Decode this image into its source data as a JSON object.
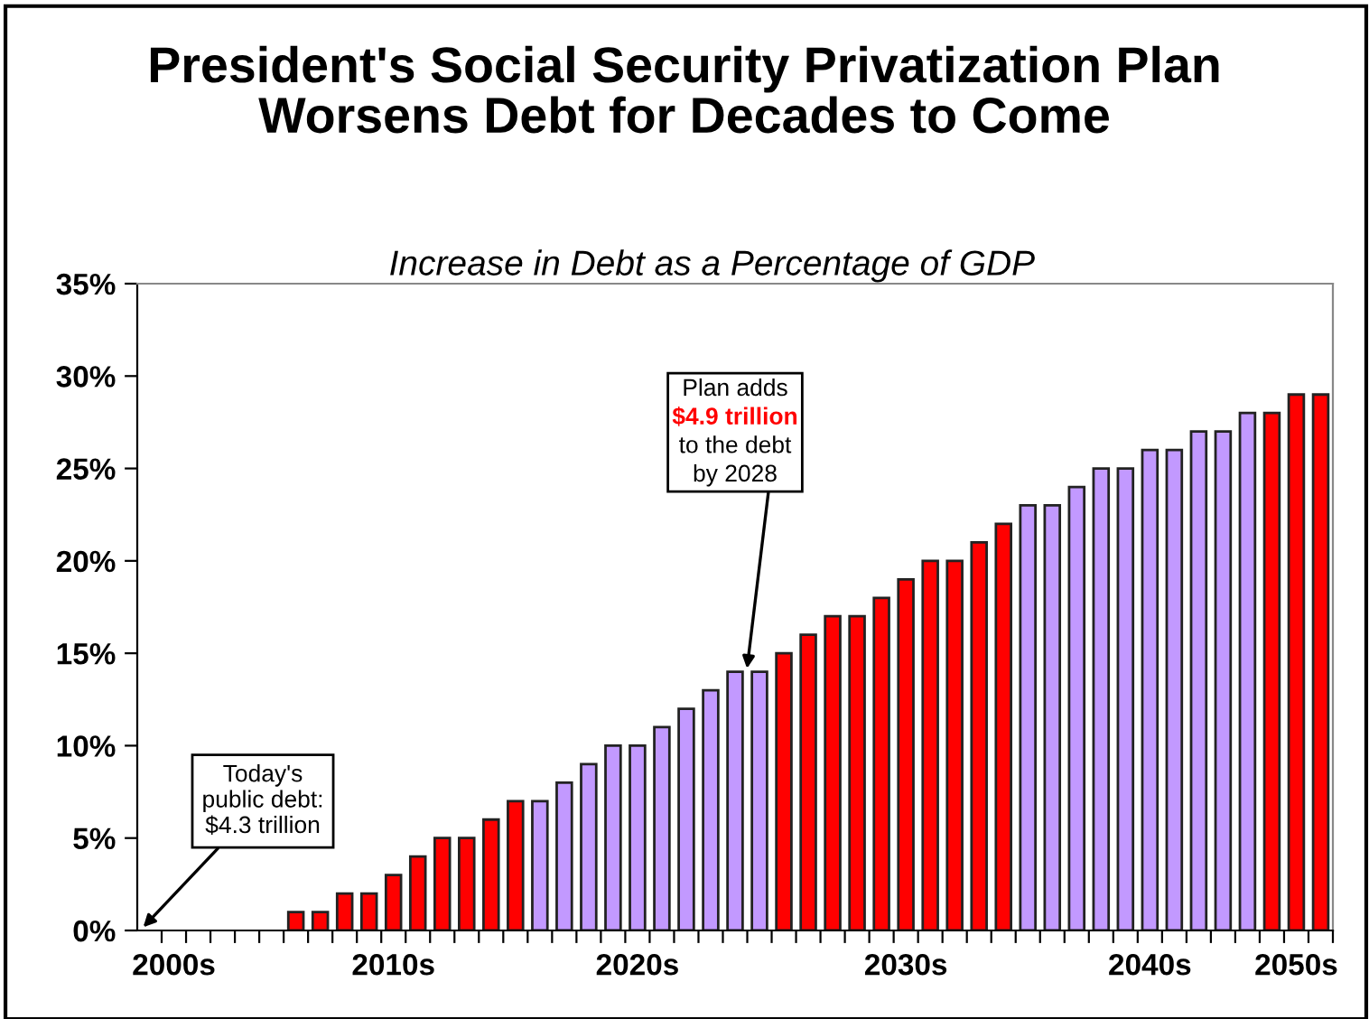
{
  "chart_data": {
    "type": "bar",
    "title": "President's Social Security Privatization Plan\nWorsens Debt for Decades to Come",
    "subtitle": "Increase in Debt as a Percentage of GDP",
    "categories": [
      null,
      "2000s",
      null,
      null,
      null,
      null,
      null,
      null,
      null,
      null,
      "2010s",
      null,
      null,
      null,
      null,
      null,
      null,
      null,
      null,
      null,
      "2020s",
      null,
      null,
      null,
      null,
      null,
      null,
      null,
      null,
      null,
      null,
      "2030s",
      null,
      null,
      null,
      null,
      null,
      null,
      null,
      null,
      null,
      "2040s",
      null,
      null,
      null,
      null,
      null,
      "2050s",
      null
    ],
    "values": [
      null,
      null,
      null,
      null,
      null,
      null,
      1,
      1,
      2,
      2,
      3,
      4,
      5,
      5,
      6,
      7,
      7,
      8,
      9,
      10,
      10,
      11,
      12,
      13,
      14,
      14,
      15,
      16,
      17,
      17,
      18,
      19,
      20,
      20,
      21,
      22,
      23,
      23,
      24,
      25,
      25,
      26,
      26,
      27,
      27,
      28,
      28,
      29,
      29
    ],
    "colors": [
      "#ff0000",
      "#ff0000",
      "#ff0000",
      "#ff0000",
      "#ff0000",
      "#ff0000",
      "#ff0000",
      "#ff0000",
      "#ff0000",
      "#ff0000",
      "#ff0000",
      "#ff0000",
      "#ff0000",
      "#ff0000",
      "#ff0000",
      "#ff0000",
      "#c299ff",
      "#c299ff",
      "#c299ff",
      "#c299ff",
      "#c299ff",
      "#c299ff",
      "#c299ff",
      "#c299ff",
      "#c299ff",
      "#c299ff",
      "#ff0000",
      "#ff0000",
      "#ff0000",
      "#ff0000",
      "#ff0000",
      "#ff0000",
      "#ff0000",
      "#ff0000",
      "#ff0000",
      "#ff0000",
      "#c299ff",
      "#c299ff",
      "#c299ff",
      "#c299ff",
      "#c299ff",
      "#c299ff",
      "#c299ff",
      "#c299ff",
      "#c299ff",
      "#c299ff",
      "#ff0000",
      "#ff0000",
      "#ff0000"
    ],
    "ylim": [
      0,
      35
    ],
    "yticks": [
      {
        "value": 0,
        "label": "0%"
      },
      {
        "value": 5,
        "label": "5%"
      },
      {
        "value": 10,
        "label": "10%"
      },
      {
        "value": 15,
        "label": "15%"
      },
      {
        "value": 20,
        "label": "20%"
      },
      {
        "value": 25,
        "label": "25%"
      },
      {
        "value": 30,
        "label": "30%"
      },
      {
        "value": 35,
        "label": "35%"
      }
    ],
    "annotations": [
      "Today's\npublic debt:\n$4.3 trillion",
      "Plan adds\n$4.9 trillion\nto the debt\nby 2028"
    ],
    "grid": false,
    "legend": false
  }
}
